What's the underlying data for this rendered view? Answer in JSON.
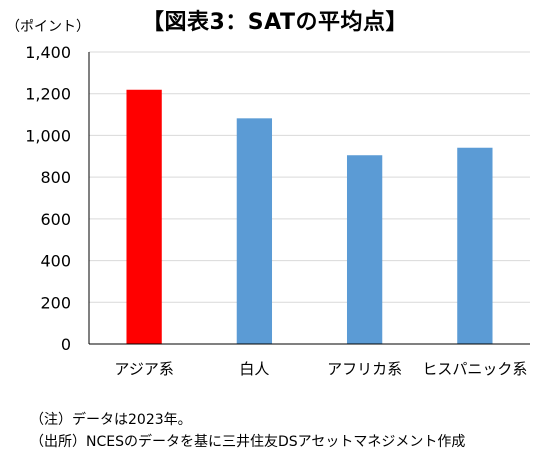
{
  "chart_data": {
    "type": "bar",
    "title": "【図表3：SATの平均点】",
    "unit_label": "（ポイント）",
    "categories": [
      "アジア系",
      "白人",
      "アフリカ系",
      "ヒスパニック系"
    ],
    "values": [
      1219,
      1082,
      905,
      941
    ],
    "colors": [
      "#ff0000",
      "#5b9bd5",
      "#5b9bd5",
      "#5b9bd5"
    ],
    "ylim": [
      0,
      1400
    ],
    "yticks": [
      0,
      200,
      400,
      600,
      800,
      1000,
      1200,
      1400
    ],
    "ytick_labels": [
      "0",
      "200",
      "400",
      "600",
      "800",
      "1,000",
      "1,200",
      "1,400"
    ],
    "grid": true,
    "legend": "none"
  },
  "notes": {
    "note1": "（注）データは2023年。",
    "note2": "（出所）NCESのデータを基に三井住友DSアセットマネジメント作成"
  }
}
